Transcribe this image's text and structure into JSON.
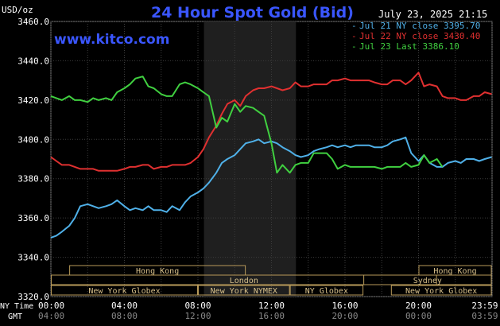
{
  "chart_data": {
    "type": "line",
    "title": "24 Hour Spot Gold (Bid)",
    "y_unit_label": "USD/oz",
    "source_link": "www.kitco.com",
    "timestamp": "July 23, 2025 21:15",
    "ylim": [
      3320,
      3460
    ],
    "y_ticks": [
      "3460.0",
      "3440.0",
      "3420.0",
      "3400.0",
      "3380.0",
      "3360.0",
      "3340.0",
      "3320.0"
    ],
    "y_tick_values": [
      3460,
      3440,
      3420,
      3400,
      3380,
      3360,
      3340,
      3320
    ],
    "x_ticks": [
      "00:00",
      "04:00",
      "08:00",
      "12:00",
      "16:00",
      "20:00",
      "23:59"
    ],
    "gmt_ticks": [
      "04:00",
      "08:00",
      "12:00",
      "16:00",
      "20:00",
      "00:00",
      "03:59"
    ],
    "x_tick_hours": [
      0,
      4,
      8,
      12,
      16,
      20,
      23.98
    ],
    "x_axis_label_ny": "NY Time",
    "x_axis_label_gmt": "GMT",
    "shaded_region_hours": [
      8.33,
      13.33
    ],
    "grid": true,
    "legend_position": "top-right",
    "series": [
      {
        "name": "Jul 21 NY close 3395.70",
        "color": "#4fb0e8",
        "x": [
          0,
          0.3,
          0.6,
          1,
          1.3,
          1.6,
          2,
          2.3,
          2.6,
          3,
          3.3,
          3.6,
          4,
          4.3,
          4.6,
          5,
          5.3,
          5.6,
          6,
          6.3,
          6.6,
          7,
          7.3,
          7.6,
          8,
          8.3,
          8.6,
          9,
          9.3,
          9.6,
          10,
          10.3,
          10.6,
          11,
          11.3,
          11.6,
          12,
          12.3,
          12.6,
          13,
          13.3,
          13.6,
          14,
          14.3,
          14.6,
          15,
          15.3,
          15.6,
          16,
          16.3,
          16.6,
          17,
          17.3,
          17.6,
          18,
          18.3,
          18.6,
          19,
          19.3,
          19.6,
          20,
          20.3,
          20.6,
          21,
          21.3,
          21.6,
          22,
          22.3,
          22.6,
          23,
          23.3,
          23.6,
          23.98
        ],
        "y": [
          3350,
          3351,
          3353,
          3356,
          3360,
          3366,
          3367,
          3366,
          3365,
          3366,
          3367,
          3369,
          3366,
          3364,
          3365,
          3364,
          3366,
          3364,
          3364,
          3363,
          3366,
          3364,
          3368,
          3371,
          3373,
          3375,
          3378,
          3383,
          3388,
          3390,
          3392,
          3395,
          3398,
          3399,
          3400,
          3398,
          3399,
          3398,
          3396,
          3394,
          3392,
          3391,
          3392,
          3394,
          3395,
          3396,
          3397,
          3396,
          3397,
          3396,
          3397,
          3397,
          3397,
          3396,
          3396,
          3397,
          3399,
          3400,
          3401,
          3393,
          3389,
          3392,
          3388,
          3386,
          3386,
          3388,
          3389,
          3388,
          3390,
          3390,
          3389,
          3390,
          3391
        ]
      },
      {
        "name": "Jul 22 NY close 3430.40",
        "color": "#e03030",
        "x": [
          0,
          0.3,
          0.6,
          1,
          1.3,
          1.6,
          2,
          2.3,
          2.6,
          3,
          3.3,
          3.6,
          4,
          4.3,
          4.6,
          5,
          5.3,
          5.6,
          6,
          6.3,
          6.6,
          7,
          7.3,
          7.6,
          8,
          8.3,
          8.6,
          9,
          9.3,
          9.6,
          10,
          10.3,
          10.6,
          11,
          11.3,
          11.6,
          12,
          12.3,
          12.6,
          13,
          13.3,
          13.6,
          14,
          14.3,
          14.6,
          15,
          15.3,
          15.6,
          16,
          16.3,
          16.6,
          17,
          17.3,
          17.6,
          18,
          18.3,
          18.6,
          19,
          19.3,
          19.6,
          20,
          20.3,
          20.6,
          21,
          21.3,
          21.6,
          22,
          22.3,
          22.6,
          23,
          23.3,
          23.6,
          23.98
        ],
        "y": [
          3391,
          3389,
          3387,
          3387,
          3386,
          3385,
          3385,
          3385,
          3384,
          3384,
          3384,
          3384,
          3385,
          3386,
          3386,
          3387,
          3387,
          3385,
          3386,
          3386,
          3387,
          3387,
          3387,
          3388,
          3391,
          3395,
          3401,
          3407,
          3413,
          3418,
          3420,
          3417,
          3422,
          3425,
          3426,
          3426,
          3427,
          3426,
          3425,
          3426,
          3429,
          3427,
          3427,
          3428,
          3428,
          3428,
          3430,
          3430,
          3431,
          3430,
          3430,
          3430,
          3430,
          3429,
          3428,
          3428,
          3430,
          3430,
          3428,
          3430,
          3434,
          3427,
          3428,
          3427,
          3422,
          3421,
          3421,
          3420,
          3420,
          3422,
          3422,
          3424,
          3423
        ]
      },
      {
        "name": "Jul 23 Last 3386.10",
        "color": "#40d040",
        "x": [
          0,
          0.3,
          0.6,
          1,
          1.3,
          1.6,
          2,
          2.3,
          2.6,
          3,
          3.3,
          3.6,
          4,
          4.3,
          4.6,
          5,
          5.3,
          5.6,
          6,
          6.3,
          6.6,
          7,
          7.3,
          7.6,
          8,
          8.3,
          8.6,
          9,
          9.3,
          9.6,
          10,
          10.3,
          10.6,
          11,
          11.3,
          11.6,
          12,
          12.3,
          12.6,
          13,
          13.3,
          13.6,
          14,
          14.3,
          14.6,
          15,
          15.3,
          15.6,
          16,
          16.3,
          16.6,
          17,
          17.3,
          17.6,
          18,
          18.3,
          18.6,
          19,
          19.3,
          19.6,
          20,
          20.3,
          20.6,
          21,
          21.3
        ],
        "y": [
          3422,
          3421,
          3420,
          3422,
          3420,
          3420,
          3419,
          3421,
          3420,
          3421,
          3420,
          3424,
          3426,
          3428,
          3431,
          3432,
          3427,
          3426,
          3423,
          3422,
          3422,
          3428,
          3429,
          3428,
          3426,
          3424,
          3422,
          3406,
          3411,
          3409,
          3418,
          3414,
          3417,
          3416,
          3414,
          3412,
          3398,
          3383,
          3387,
          3383,
          3387,
          3388,
          3388,
          3393,
          3393,
          3393,
          3390,
          3385,
          3387,
          3386,
          3386,
          3386,
          3386,
          3386,
          3385,
          3386,
          3386,
          3386,
          3388,
          3386,
          3387,
          3392,
          3388,
          3390,
          3386
        ]
      }
    ],
    "sessions": [
      {
        "label": "Hong Kong",
        "start": 1.0,
        "end": 10.6,
        "row": 0
      },
      {
        "label": "Hong Kong",
        "start": 20.0,
        "end": 23.98,
        "row": 0
      },
      {
        "label": "London",
        "start": 0.0,
        "end": 21.0,
        "row": 1
      },
      {
        "label": "New York Globex",
        "start": 0.0,
        "end": 8.0,
        "row": 2
      },
      {
        "label": "New York NYMEX",
        "start": 8.0,
        "end": 13.0,
        "row": 2
      },
      {
        "label": "NY Globex",
        "start": 13.0,
        "end": 17.0,
        "row": 2
      },
      {
        "label": "Sydney",
        "start": 17.0,
        "end": 23.98,
        "row": 1
      },
      {
        "label": "New York Globex",
        "start": 18.5,
        "end": 23.98,
        "row": 2
      }
    ]
  }
}
